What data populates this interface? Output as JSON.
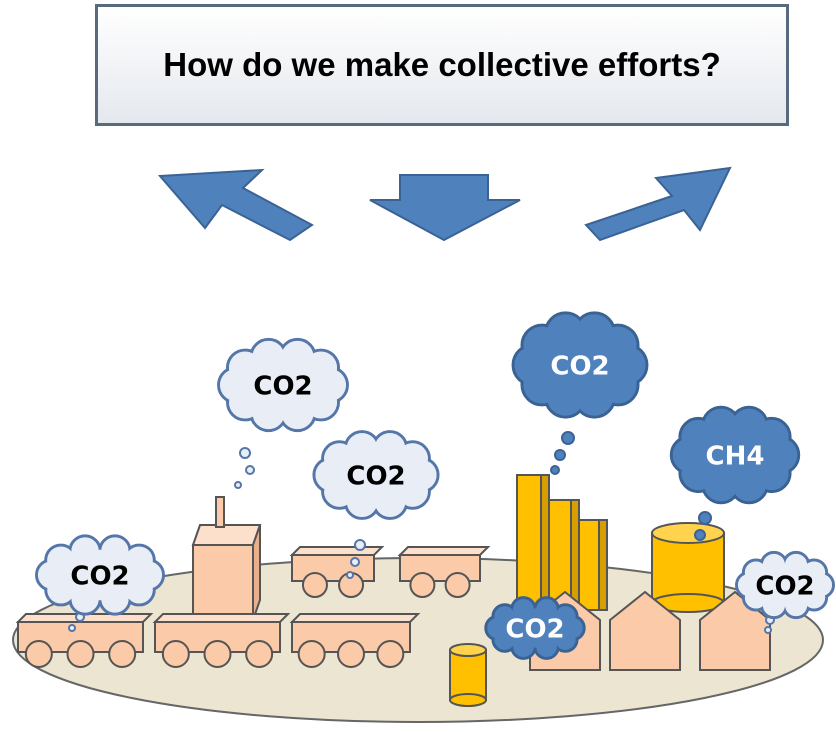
{
  "title": "How do we make collective efforts?",
  "clouds": [
    {
      "label": "CO2"
    },
    {
      "label": "CO2"
    },
    {
      "label": "CO2"
    },
    {
      "label": "CO2"
    },
    {
      "label": "CH4"
    },
    {
      "label": "CO2"
    },
    {
      "label": "CO2"
    }
  ]
}
